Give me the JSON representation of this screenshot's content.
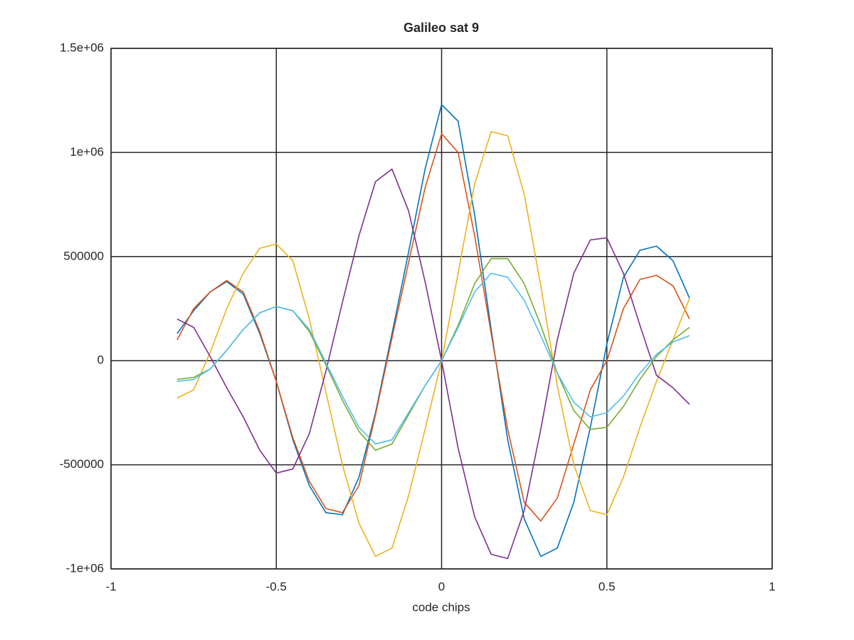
{
  "chart_data": {
    "type": "line",
    "title": "Galileo sat 9",
    "x_label": "code chips",
    "x": [
      -0.8,
      -0.75,
      -0.7,
      -0.65,
      -0.6,
      -0.55,
      -0.5,
      -0.45,
      -0.4,
      -0.35,
      -0.3,
      -0.25,
      -0.2,
      -0.15,
      -0.1,
      -0.05,
      0,
      0.05,
      0.1,
      0.15,
      0.2,
      0.25,
      0.3,
      0.35,
      0.4,
      0.45,
      0.5,
      0.55,
      0.6,
      0.65,
      0.7,
      0.75
    ],
    "series": [
      {
        "color": "#0072bd",
        "values": [
          130000,
          240000,
          330000,
          380000,
          320000,
          130000,
          -100000,
          -380000,
          -600000,
          -730000,
          -740000,
          -560000,
          -250000,
          130000,
          520000,
          920000,
          1230000,
          1150000,
          700000,
          150000,
          -380000,
          -760000,
          -940000,
          -900000,
          -680000,
          -320000,
          80000,
          400000,
          530000,
          550000,
          480000,
          300000
        ]
      },
      {
        "color": "#d95319",
        "values": [
          100000,
          250000,
          330000,
          385000,
          330000,
          140000,
          -100000,
          -370000,
          -580000,
          -710000,
          -730000,
          -600000,
          -260000,
          110000,
          470000,
          830000,
          1090000,
          1000000,
          600000,
          130000,
          -330000,
          -680000,
          -770000,
          -660000,
          -400000,
          -140000,
          0,
          250000,
          390000,
          410000,
          360000,
          200000
        ]
      },
      {
        "color": "#edb120",
        "values": [
          -180000,
          -140000,
          40000,
          250000,
          420000,
          540000,
          560000,
          480000,
          200000,
          -150000,
          -500000,
          -780000,
          -940000,
          -900000,
          -650000,
          -330000,
          0,
          420000,
          850000,
          1100000,
          1080000,
          800000,
          360000,
          -120000,
          -500000,
          -720000,
          -740000,
          -560000,
          -320000,
          -100000,
          100000,
          300000
        ]
      },
      {
        "color": "#7e2f8e",
        "values": [
          200000,
          160000,
          20000,
          -130000,
          -270000,
          -430000,
          -540000,
          -520000,
          -350000,
          -50000,
          280000,
          600000,
          860000,
          920000,
          720000,
          380000,
          0,
          -420000,
          -750000,
          -930000,
          -950000,
          -720000,
          -330000,
          100000,
          420000,
          580000,
          590000,
          420000,
          170000,
          -70000,
          -130000,
          -210000
        ]
      },
      {
        "color": "#77ac30",
        "values": [
          -90000,
          -80000,
          -40000,
          50000,
          150000,
          230000,
          260000,
          240000,
          140000,
          -20000,
          -190000,
          -340000,
          -430000,
          -400000,
          -260000,
          -120000,
          0,
          170000,
          370000,
          490000,
          490000,
          370000,
          170000,
          -60000,
          -240000,
          -330000,
          -320000,
          -220000,
          -90000,
          20000,
          100000,
          160000
        ]
      },
      {
        "color": "#4dbeee",
        "values": [
          -100000,
          -90000,
          -40000,
          50000,
          150000,
          230000,
          260000,
          240000,
          150000,
          -10000,
          -170000,
          -320000,
          -400000,
          -380000,
          -250000,
          -120000,
          0,
          160000,
          330000,
          420000,
          400000,
          290000,
          120000,
          -60000,
          -200000,
          -270000,
          -250000,
          -170000,
          -60000,
          30000,
          90000,
          120000
        ]
      }
    ],
    "xlim": [
      -1,
      1
    ],
    "xticks": [
      -1,
      -0.5,
      0,
      0.5,
      1
    ],
    "ylim": [
      -1000000,
      1500000
    ],
    "yticks": [
      {
        "value": -1000000,
        "label": "-1e+06"
      },
      -500000,
      0,
      500000,
      {
        "value": 1000000,
        "label": "1e+06"
      },
      {
        "value": 1500000,
        "label": "1.5e+06"
      }
    ],
    "grid": true
  }
}
